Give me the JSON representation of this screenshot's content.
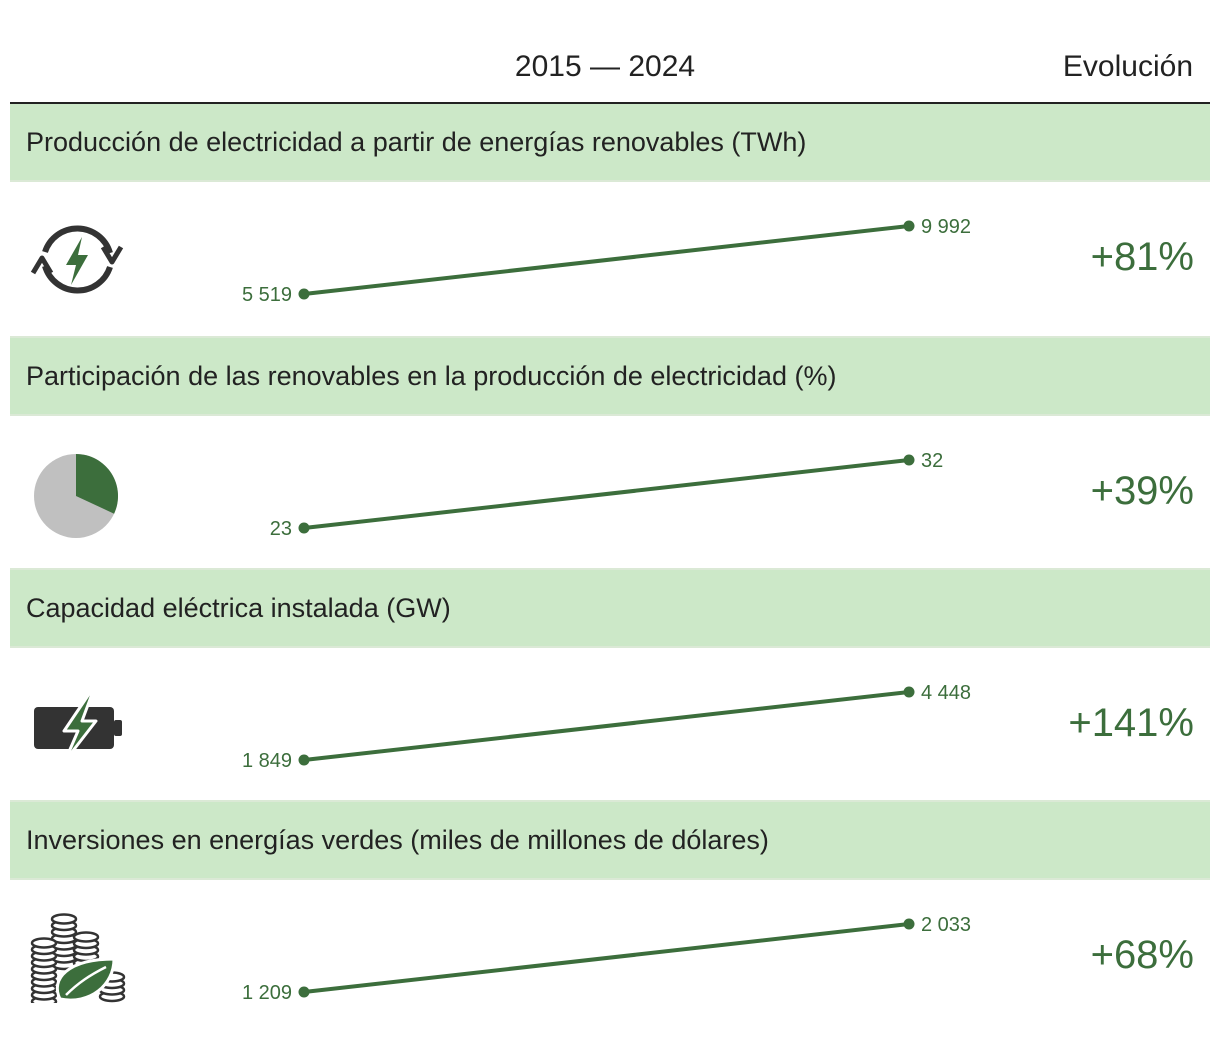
{
  "header": {
    "period": "2015 — 2024",
    "evolution": "Evolución"
  },
  "colors": {
    "band_bg": "#cce8c8",
    "accent": "#3c6e3c",
    "icon_dark": "#333333",
    "pie_gray": "#c0c0c0"
  },
  "chart_data": {
    "type": "line",
    "x": [
      "2015",
      "2024"
    ],
    "panels": [
      {
        "title": "Producción de electricidad a partir de energías renovables (TWh)",
        "icon": "renewable-cycle-bolt-icon",
        "values": [
          5519,
          9992
        ],
        "labels": [
          "5 519",
          "9 992"
        ],
        "evolution": "+81%"
      },
      {
        "title": "Participación de las renovables en la producción de electricidad (%)",
        "icon": "pie-share-icon",
        "values": [
          23,
          32
        ],
        "labels": [
          "23",
          "32"
        ],
        "evolution": "+39%"
      },
      {
        "title": "Capacidad eléctrica instalada (GW)",
        "icon": "battery-bolt-icon",
        "values": [
          1849,
          4448
        ],
        "labels": [
          "1 849",
          "4 448"
        ],
        "evolution": "+141%"
      },
      {
        "title": "Inversiones en energías verdes (miles de millones de dólares)",
        "icon": "coins-leaf-icon",
        "values": [
          1209,
          2033
        ],
        "labels": [
          "1 209",
          "2 033"
        ],
        "evolution": "+68%"
      }
    ]
  }
}
